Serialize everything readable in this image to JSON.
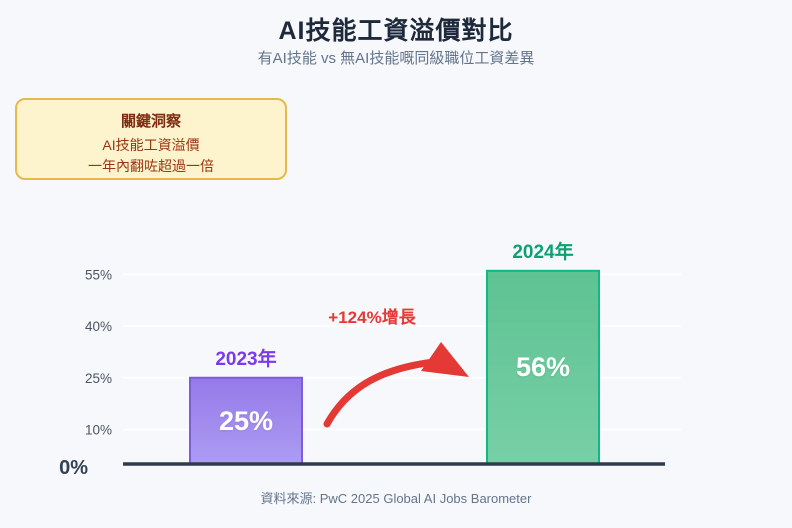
{
  "page": {
    "title": "AI技能工資溢價對比",
    "subtitle": "有AI技能 vs 無AI技能嘅同級職位工資差異",
    "source": "資料來源: PwC 2025 Global AI Jobs Barometer",
    "background": "#f7f8fc"
  },
  "insight_box": {
    "heading": "關鍵洞察",
    "line1": "AI技能工資溢價",
    "line2": "一年內翻咗超過一倍",
    "bg": "#fdf3cc",
    "border": "#e5b94e",
    "heading_color": "#7c2d12",
    "body_color": "#9a3412"
  },
  "chart_data": {
    "type": "bar",
    "title": "AI技能工資溢價對比",
    "xlabel": "",
    "ylabel": "",
    "categories": [
      "2023年",
      "2024年"
    ],
    "values": [
      25,
      56
    ],
    "unit": "%",
    "bar_value_labels": [
      "25%",
      "56%"
    ],
    "category_colors": [
      "#7c3aed",
      "#0ea16f"
    ],
    "bar_fill": [
      [
        "#8a6ce6",
        "#a492f2"
      ],
      [
        "#4dbd87",
        "#6acb9d"
      ]
    ],
    "bar_border": [
      "#7c5cdb",
      "#10b981"
    ],
    "y_ticks": [
      "55%",
      "40%",
      "25%",
      "10%",
      "0%"
    ],
    "y_tick_values": [
      55,
      40,
      25,
      10,
      0
    ],
    "ylim": [
      0,
      60
    ],
    "grid": "horizontal-faint",
    "legend": "none",
    "annotation": {
      "text": "+124%增長",
      "color": "#e53935"
    },
    "axis_color": "#2f3a4a"
  }
}
